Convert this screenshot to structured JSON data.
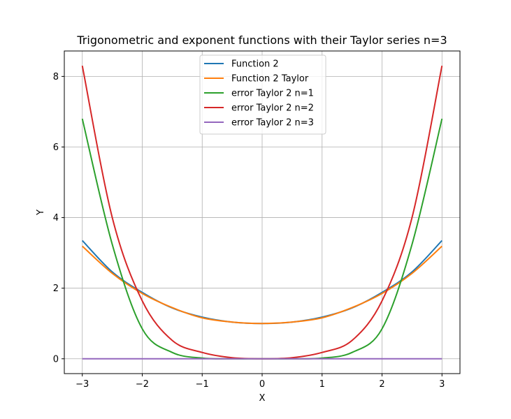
{
  "chart_data": {
    "type": "line",
    "title": "Trigonometric and exponent functions with their Taylor series n=3",
    "xlabel": "X",
    "ylabel": "Y",
    "xlim": [
      -3.3,
      3.3
    ],
    "ylim": [
      -0.42,
      8.72
    ],
    "xticks": [
      -3,
      -2,
      -1,
      0,
      1,
      2,
      3
    ],
    "xtick_labels": [
      "−3",
      "−2",
      "−1",
      "0",
      "1",
      "2",
      "3"
    ],
    "yticks": [
      0,
      2,
      4,
      6,
      8
    ],
    "ytick_labels": [
      "0",
      "2",
      "4",
      "6",
      "8"
    ],
    "grid": true,
    "legend_position": "upper-center",
    "x": [
      -3.0,
      -2.5,
      -2.0,
      -1.5,
      -1.0,
      -0.5,
      0.0,
      0.5,
      1.0,
      1.5,
      2.0,
      2.5,
      3.0
    ],
    "series": [
      {
        "name": "Function 2",
        "color": "#1f77b4",
        "values": [
          3.35,
          2.46,
          1.88,
          1.44,
          1.18,
          1.04,
          1.0,
          1.04,
          1.18,
          1.44,
          1.88,
          2.46,
          3.35
        ]
      },
      {
        "name": "Function 2 Taylor",
        "color": "#ff7f0e",
        "values": [
          3.19,
          2.42,
          1.85,
          1.45,
          1.16,
          1.04,
          1.0,
          1.04,
          1.16,
          1.45,
          1.85,
          2.42,
          3.19
        ]
      },
      {
        "name": "error Taylor 2 n=1",
        "color": "#2ca02c",
        "values": [
          6.8,
          3.24,
          0.85,
          0.18,
          0.02,
          0.0,
          0.0,
          0.0,
          0.02,
          0.18,
          0.85,
          3.24,
          6.8
        ]
      },
      {
        "name": "error Taylor 2 n=2",
        "color": "#d62728",
        "values": [
          8.3,
          4.0,
          1.64,
          0.52,
          0.18,
          0.03,
          0.0,
          0.03,
          0.18,
          0.52,
          1.64,
          4.0,
          8.3
        ]
      },
      {
        "name": "error Taylor 2 n=3",
        "color": "#9467bd",
        "values": [
          0.0,
          0.0,
          0.0,
          0.0,
          0.0,
          0.0,
          0.0,
          0.0,
          0.0,
          0.0,
          0.0,
          0.0,
          0.0
        ]
      }
    ]
  }
}
